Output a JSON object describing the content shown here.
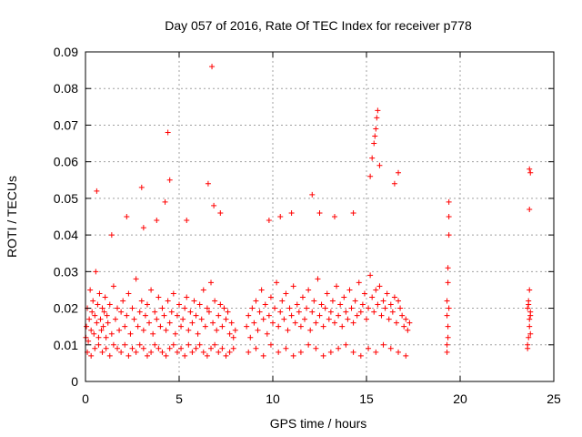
{
  "chart_data": {
    "type": "scatter",
    "title": "Day 057 of 2016, Rate Of TEC Index for receiver p778",
    "xlabel": "GPS time / hours",
    "ylabel": "ROTI / TECUs",
    "xlim": [
      0,
      25
    ],
    "ylim": [
      0,
      0.09
    ],
    "x_ticks": [
      0,
      5,
      10,
      15,
      20,
      25
    ],
    "x_tick_labels": [
      "0",
      "5",
      "10",
      "15",
      "20",
      "25"
    ],
    "y_ticks": [
      0,
      0.01,
      0.02,
      0.03,
      0.04,
      0.05,
      0.06,
      0.07,
      0.08,
      0.09
    ],
    "y_tick_labels": [
      "0",
      "0.01",
      "0.02",
      "0.03",
      "0.04",
      "0.05",
      "0.06",
      "0.07",
      "0.08",
      "0.09"
    ],
    "grid": true,
    "marker": "+",
    "color": "#ff0000",
    "series": [
      {
        "name": "ROTI",
        "x": [
          0.02,
          0.05,
          0.1,
          0.15,
          0.2,
          0.25,
          0.3,
          0.35,
          0.4,
          0.45,
          0.5,
          0.55,
          0.6,
          0.65,
          0.7,
          0.75,
          0.8,
          0.85,
          0.9,
          0.95,
          1.0,
          1.05,
          1.1,
          1.15,
          1.2,
          1.3,
          1.4,
          1.5,
          1.6,
          1.7,
          1.8,
          1.9,
          2.0,
          2.1,
          2.2,
          2.3,
          2.4,
          2.5,
          2.6,
          2.7,
          2.8,
          2.9,
          3.0,
          3.1,
          3.2,
          3.3,
          3.4,
          3.5,
          3.6,
          3.7,
          3.8,
          3.9,
          4.0,
          4.1,
          4.2,
          4.3,
          4.4,
          4.5,
          4.6,
          4.7,
          4.8,
          4.9,
          5.0,
          5.1,
          5.2,
          5.3,
          5.4,
          5.5,
          5.6,
          5.7,
          5.8,
          5.9,
          6.0,
          6.1,
          6.2,
          6.3,
          6.4,
          6.5,
          6.6,
          6.7,
          6.8,
          6.9,
          7.0,
          7.1,
          7.2,
          7.3,
          7.4,
          7.5,
          7.6,
          7.7,
          7.8,
          7.9,
          8.0,
          0.1,
          0.3,
          0.5,
          0.7,
          0.9,
          1.1,
          1.3,
          1.5,
          1.7,
          1.9,
          2.1,
          2.3,
          2.5,
          2.7,
          2.9,
          3.1,
          3.3,
          3.5,
          3.7,
          3.9,
          4.1,
          4.3,
          4.5,
          4.7,
          4.9,
          5.1,
          5.3,
          5.5,
          5.7,
          5.9,
          6.1,
          6.3,
          6.5,
          6.7,
          6.9,
          7.1,
          7.3,
          7.5,
          7.7,
          7.9,
          0.6,
          1.4,
          2.2,
          3.0,
          3.1,
          3.8,
          4.25,
          4.4,
          4.5,
          5.4,
          6.55,
          6.75,
          6.85,
          7.2,
          8.6,
          8.7,
          8.8,
          8.9,
          9.0,
          9.1,
          9.2,
          9.3,
          9.4,
          9.5,
          9.6,
          9.7,
          9.8,
          9.9,
          10.0,
          10.1,
          10.2,
          10.3,
          10.4,
          10.5,
          10.6,
          10.7,
          10.8,
          10.9,
          11.0,
          11.1,
          11.2,
          11.3,
          11.4,
          11.5,
          11.6,
          11.7,
          11.8,
          11.9,
          12.0,
          12.1,
          12.2,
          12.3,
          12.4,
          12.5,
          12.6,
          12.7,
          12.8,
          12.9,
          13.0,
          13.1,
          13.2,
          13.3,
          13.4,
          13.5,
          13.6,
          13.7,
          13.8,
          13.9,
          14.0,
          14.1,
          14.2,
          14.3,
          14.4,
          14.5,
          14.6,
          14.7,
          14.8,
          14.9,
          15.0,
          15.1,
          15.2,
          15.3,
          15.4,
          15.5,
          15.6,
          15.7,
          15.8,
          15.9,
          16.0,
          16.1,
          16.2,
          16.3,
          16.4,
          16.5,
          16.6,
          16.7,
          16.8,
          16.9,
          17.0,
          17.1,
          17.2,
          17.3,
          8.7,
          9.1,
          9.5,
          9.9,
          10.3,
          10.7,
          11.1,
          11.5,
          11.9,
          12.3,
          12.7,
          13.1,
          13.5,
          13.9,
          14.3,
          14.7,
          15.1,
          15.5,
          15.9,
          16.3,
          16.7,
          17.1,
          9.8,
          10.4,
          11.0,
          12.1,
          12.5,
          13.3,
          14.3,
          15.2,
          15.3,
          15.4,
          15.45,
          15.5,
          15.55,
          15.6,
          15.7,
          16.5,
          16.7,
          19.3,
          19.3,
          19.3,
          19.35,
          19.35,
          19.35,
          19.4,
          19.4,
          19.4,
          19.35,
          19.3,
          19.4,
          23.6,
          23.65,
          23.7,
          23.75,
          23.6,
          23.65,
          23.7,
          23.75,
          23.6,
          23.7,
          23.75,
          23.65,
          23.7,
          23.75,
          23.7
        ],
        "y": [
          0.012,
          0.015,
          0.02,
          0.011,
          0.017,
          0.025,
          0.014,
          0.019,
          0.022,
          0.013,
          0.018,
          0.03,
          0.016,
          0.021,
          0.012,
          0.024,
          0.017,
          0.014,
          0.02,
          0.015,
          0.019,
          0.023,
          0.012,
          0.018,
          0.016,
          0.021,
          0.013,
          0.026,
          0.017,
          0.02,
          0.014,
          0.019,
          0.022,
          0.015,
          0.018,
          0.024,
          0.013,
          0.02,
          0.017,
          0.028,
          0.015,
          0.019,
          0.022,
          0.014,
          0.018,
          0.021,
          0.016,
          0.025,
          0.013,
          0.019,
          0.017,
          0.023,
          0.015,
          0.02,
          0.018,
          0.014,
          0.022,
          0.016,
          0.019,
          0.024,
          0.013,
          0.018,
          0.021,
          0.015,
          0.017,
          0.02,
          0.023,
          0.014,
          0.019,
          0.016,
          0.022,
          0.018,
          0.013,
          0.021,
          0.017,
          0.025,
          0.015,
          0.02,
          0.019,
          0.027,
          0.016,
          0.022,
          0.014,
          0.018,
          0.021,
          0.015,
          0.02,
          0.017,
          0.019,
          0.013,
          0.016,
          0.012,
          0.014,
          0.008,
          0.007,
          0.009,
          0.01,
          0.008,
          0.009,
          0.007,
          0.01,
          0.009,
          0.008,
          0.01,
          0.007,
          0.009,
          0.008,
          0.01,
          0.009,
          0.007,
          0.008,
          0.01,
          0.009,
          0.008,
          0.007,
          0.009,
          0.01,
          0.008,
          0.009,
          0.007,
          0.01,
          0.008,
          0.009,
          0.01,
          0.008,
          0.007,
          0.009,
          0.01,
          0.008,
          0.009,
          0.007,
          0.008,
          0.009,
          0.052,
          0.04,
          0.045,
          0.053,
          0.042,
          0.044,
          0.049,
          0.068,
          0.055,
          0.044,
          0.054,
          0.086,
          0.048,
          0.046,
          0.015,
          0.018,
          0.012,
          0.02,
          0.016,
          0.022,
          0.014,
          0.019,
          0.025,
          0.017,
          0.021,
          0.013,
          0.018,
          0.023,
          0.016,
          0.02,
          0.027,
          0.015,
          0.019,
          0.022,
          0.017,
          0.024,
          0.014,
          0.02,
          0.018,
          0.026,
          0.016,
          0.021,
          0.019,
          0.015,
          0.023,
          0.017,
          0.02,
          0.025,
          0.014,
          0.019,
          0.022,
          0.016,
          0.028,
          0.018,
          0.021,
          0.015,
          0.02,
          0.024,
          0.017,
          0.019,
          0.022,
          0.016,
          0.026,
          0.018,
          0.021,
          0.015,
          0.023,
          0.019,
          0.017,
          0.025,
          0.02,
          0.016,
          0.022,
          0.018,
          0.027,
          0.019,
          0.021,
          0.024,
          0.017,
          0.02,
          0.029,
          0.023,
          0.019,
          0.025,
          0.021,
          0.026,
          0.018,
          0.022,
          0.02,
          0.024,
          0.017,
          0.021,
          0.019,
          0.023,
          0.016,
          0.022,
          0.02,
          0.018,
          0.015,
          0.017,
          0.014,
          0.016,
          0.008,
          0.009,
          0.007,
          0.01,
          0.008,
          0.009,
          0.007,
          0.008,
          0.01,
          0.009,
          0.007,
          0.008,
          0.009,
          0.01,
          0.008,
          0.007,
          0.009,
          0.008,
          0.01,
          0.009,
          0.008,
          0.007,
          0.044,
          0.045,
          0.046,
          0.051,
          0.046,
          0.045,
          0.046,
          0.056,
          0.061,
          0.065,
          0.067,
          0.069,
          0.072,
          0.074,
          0.059,
          0.054,
          0.057,
          0.01,
          0.018,
          0.022,
          0.027,
          0.012,
          0.031,
          0.04,
          0.045,
          0.049,
          0.015,
          0.008,
          0.02,
          0.01,
          0.012,
          0.015,
          0.018,
          0.02,
          0.022,
          0.025,
          0.013,
          0.009,
          0.017,
          0.019,
          0.021,
          0.047,
          0.057,
          0.058
        ]
      }
    ]
  }
}
